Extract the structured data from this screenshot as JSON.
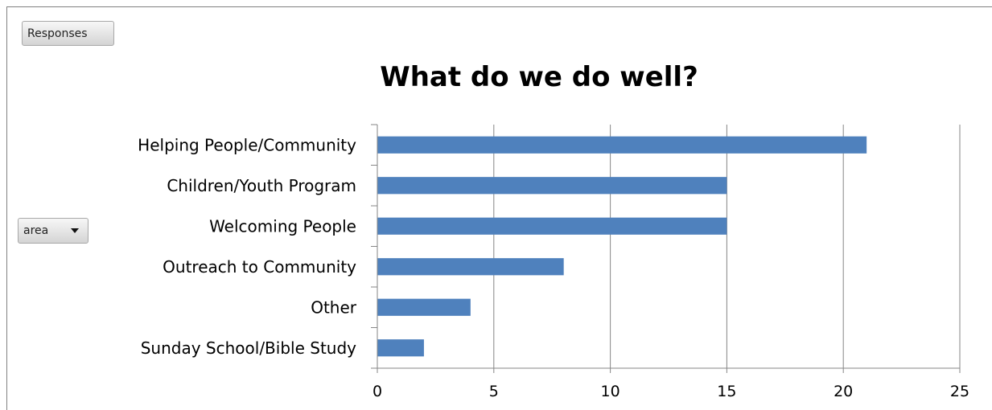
{
  "pivot": {
    "responses_label": "Responses",
    "area_label": "area"
  },
  "colors": {
    "bar": "#4f81bd",
    "grid": "#868686",
    "axis": "#868686"
  },
  "chart_data": {
    "type": "bar",
    "orientation": "horizontal",
    "title": "What do we do well?",
    "xlabel": "",
    "ylabel": "",
    "categories": [
      "Helping People/Community",
      "Children/Youth Program",
      "Welcoming People",
      "Outreach to Community",
      "Other",
      "Sunday School/Bible Study"
    ],
    "values": [
      21,
      15,
      15,
      8,
      4,
      2
    ],
    "xlim": [
      0,
      25
    ],
    "xticks": [
      0,
      5,
      10,
      15,
      20,
      25
    ],
    "grid": true,
    "legend": "none"
  }
}
